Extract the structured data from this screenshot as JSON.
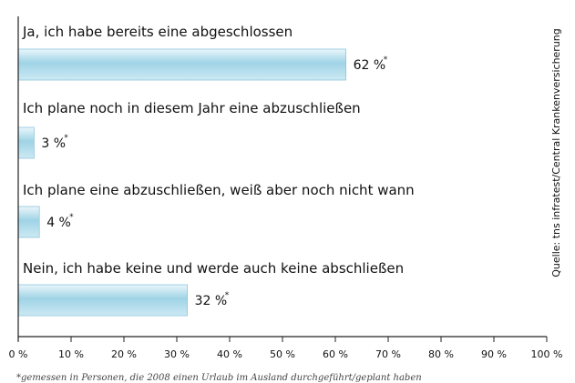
{
  "chart_data": {
    "type": "bar",
    "orientation": "horizontal",
    "categories": [
      "Ja, ich  habe bereits eine abgeschlossen",
      "Ich plane noch in diesem Jahr eine abzuschließen",
      "Ich plane eine abzuschließen, weiß aber noch nicht wann",
      "Nein, ich habe keine und werde auch keine abschließen"
    ],
    "values": [
      62,
      3,
      4,
      32
    ],
    "value_labels": [
      "62 %",
      "3 %",
      "4 %",
      "32 %"
    ],
    "value_marker": "*",
    "xlim": [
      0,
      100
    ],
    "ticks": [
      0,
      10,
      20,
      30,
      40,
      50,
      60,
      70,
      80,
      90,
      100
    ],
    "tick_labels": [
      "0 %",
      "10 %",
      "20 %",
      "30 %",
      "40 %",
      "50 %",
      "60 %",
      "70 %",
      "80 %",
      "90 %",
      "100 %"
    ],
    "bar_colors": [
      "#9fd3e6",
      "#eaf6fb"
    ],
    "grid": false,
    "source": "Quelle: tns infratest/Central Krankenversicherung",
    "footnote": "*gemessen in Personen, die 2008 einen Urlaub im Ausland durchgeführt/geplant haben"
  }
}
